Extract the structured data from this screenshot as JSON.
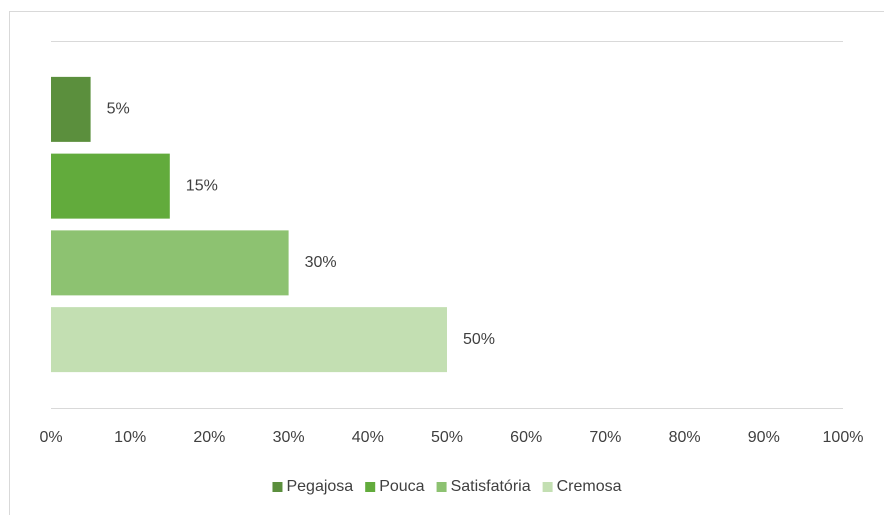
{
  "chart_data": {
    "type": "bar",
    "orientation": "horizontal",
    "categories": [
      null
    ],
    "series": [
      {
        "name": "Pegajosa",
        "color": "#5b8f3d",
        "values": [
          5
        ],
        "value_labels": [
          "5%"
        ]
      },
      {
        "name": "Pouca",
        "color": "#62ab3c",
        "values": [
          15
        ],
        "value_labels": [
          "15%"
        ]
      },
      {
        "name": "Satisfatória",
        "color": "#8dc271",
        "values": [
          30
        ],
        "value_labels": [
          "30%"
        ]
      },
      {
        "name": "Cremosa",
        "color": "#c3dfb2",
        "values": [
          50
        ],
        "value_labels": [
          "50%"
        ]
      }
    ],
    "xlim": [
      0,
      100
    ],
    "xticks": [
      {
        "value": 0,
        "label": "0%"
      },
      {
        "value": 10,
        "label": "10%"
      },
      {
        "value": 20,
        "label": "20%"
      },
      {
        "value": 30,
        "label": "30%"
      },
      {
        "value": 40,
        "label": "40%"
      },
      {
        "value": 50,
        "label": "50%"
      },
      {
        "value": 60,
        "label": "60%"
      },
      {
        "value": 70,
        "label": "70%"
      },
      {
        "value": 80,
        "label": "80%"
      },
      {
        "value": 90,
        "label": "90%"
      },
      {
        "value": 100,
        "label": "100%"
      }
    ],
    "grid": false,
    "legend": "bottom"
  }
}
